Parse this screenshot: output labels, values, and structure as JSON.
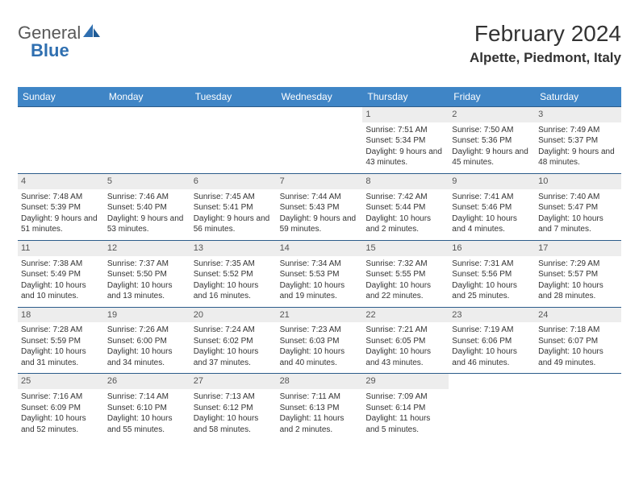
{
  "logo": {
    "part1": "General",
    "part2": "Blue"
  },
  "header": {
    "title": "February 2024",
    "location": "Alpette, Piedmont, Italy"
  },
  "colors": {
    "header_bg": "#3f85c6",
    "header_text": "#ffffff",
    "border": "#2c5c8a",
    "daynum_bg": "#ededed",
    "daynum_text": "#555555",
    "body_text": "#333333",
    "logo_gray": "#595959",
    "logo_blue": "#2f6fb0"
  },
  "typography": {
    "title_fontsize": 28,
    "location_fontsize": 17,
    "dayheader_fontsize": 12,
    "daynum_fontsize": 11,
    "body_fontsize": 10
  },
  "day_headers": [
    "Sunday",
    "Monday",
    "Tuesday",
    "Wednesday",
    "Thursday",
    "Friday",
    "Saturday"
  ],
  "weeks": [
    [
      null,
      null,
      null,
      null,
      {
        "num": "1",
        "sunrise": "7:51 AM",
        "sunset": "5:34 PM",
        "daylight": "9 hours and 43 minutes."
      },
      {
        "num": "2",
        "sunrise": "7:50 AM",
        "sunset": "5:36 PM",
        "daylight": "9 hours and 45 minutes."
      },
      {
        "num": "3",
        "sunrise": "7:49 AM",
        "sunset": "5:37 PM",
        "daylight": "9 hours and 48 minutes."
      }
    ],
    [
      {
        "num": "4",
        "sunrise": "7:48 AM",
        "sunset": "5:39 PM",
        "daylight": "9 hours and 51 minutes."
      },
      {
        "num": "5",
        "sunrise": "7:46 AM",
        "sunset": "5:40 PM",
        "daylight": "9 hours and 53 minutes."
      },
      {
        "num": "6",
        "sunrise": "7:45 AM",
        "sunset": "5:41 PM",
        "daylight": "9 hours and 56 minutes."
      },
      {
        "num": "7",
        "sunrise": "7:44 AM",
        "sunset": "5:43 PM",
        "daylight": "9 hours and 59 minutes."
      },
      {
        "num": "8",
        "sunrise": "7:42 AM",
        "sunset": "5:44 PM",
        "daylight": "10 hours and 2 minutes."
      },
      {
        "num": "9",
        "sunrise": "7:41 AM",
        "sunset": "5:46 PM",
        "daylight": "10 hours and 4 minutes."
      },
      {
        "num": "10",
        "sunrise": "7:40 AM",
        "sunset": "5:47 PM",
        "daylight": "10 hours and 7 minutes."
      }
    ],
    [
      {
        "num": "11",
        "sunrise": "7:38 AM",
        "sunset": "5:49 PM",
        "daylight": "10 hours and 10 minutes."
      },
      {
        "num": "12",
        "sunrise": "7:37 AM",
        "sunset": "5:50 PM",
        "daylight": "10 hours and 13 minutes."
      },
      {
        "num": "13",
        "sunrise": "7:35 AM",
        "sunset": "5:52 PM",
        "daylight": "10 hours and 16 minutes."
      },
      {
        "num": "14",
        "sunrise": "7:34 AM",
        "sunset": "5:53 PM",
        "daylight": "10 hours and 19 minutes."
      },
      {
        "num": "15",
        "sunrise": "7:32 AM",
        "sunset": "5:55 PM",
        "daylight": "10 hours and 22 minutes."
      },
      {
        "num": "16",
        "sunrise": "7:31 AM",
        "sunset": "5:56 PM",
        "daylight": "10 hours and 25 minutes."
      },
      {
        "num": "17",
        "sunrise": "7:29 AM",
        "sunset": "5:57 PM",
        "daylight": "10 hours and 28 minutes."
      }
    ],
    [
      {
        "num": "18",
        "sunrise": "7:28 AM",
        "sunset": "5:59 PM",
        "daylight": "10 hours and 31 minutes."
      },
      {
        "num": "19",
        "sunrise": "7:26 AM",
        "sunset": "6:00 PM",
        "daylight": "10 hours and 34 minutes."
      },
      {
        "num": "20",
        "sunrise": "7:24 AM",
        "sunset": "6:02 PM",
        "daylight": "10 hours and 37 minutes."
      },
      {
        "num": "21",
        "sunrise": "7:23 AM",
        "sunset": "6:03 PM",
        "daylight": "10 hours and 40 minutes."
      },
      {
        "num": "22",
        "sunrise": "7:21 AM",
        "sunset": "6:05 PM",
        "daylight": "10 hours and 43 minutes."
      },
      {
        "num": "23",
        "sunrise": "7:19 AM",
        "sunset": "6:06 PM",
        "daylight": "10 hours and 46 minutes."
      },
      {
        "num": "24",
        "sunrise": "7:18 AM",
        "sunset": "6:07 PM",
        "daylight": "10 hours and 49 minutes."
      }
    ],
    [
      {
        "num": "25",
        "sunrise": "7:16 AM",
        "sunset": "6:09 PM",
        "daylight": "10 hours and 52 minutes."
      },
      {
        "num": "26",
        "sunrise": "7:14 AM",
        "sunset": "6:10 PM",
        "daylight": "10 hours and 55 minutes."
      },
      {
        "num": "27",
        "sunrise": "7:13 AM",
        "sunset": "6:12 PM",
        "daylight": "10 hours and 58 minutes."
      },
      {
        "num": "28",
        "sunrise": "7:11 AM",
        "sunset": "6:13 PM",
        "daylight": "11 hours and 2 minutes."
      },
      {
        "num": "29",
        "sunrise": "7:09 AM",
        "sunset": "6:14 PM",
        "daylight": "11 hours and 5 minutes."
      },
      null,
      null
    ]
  ]
}
